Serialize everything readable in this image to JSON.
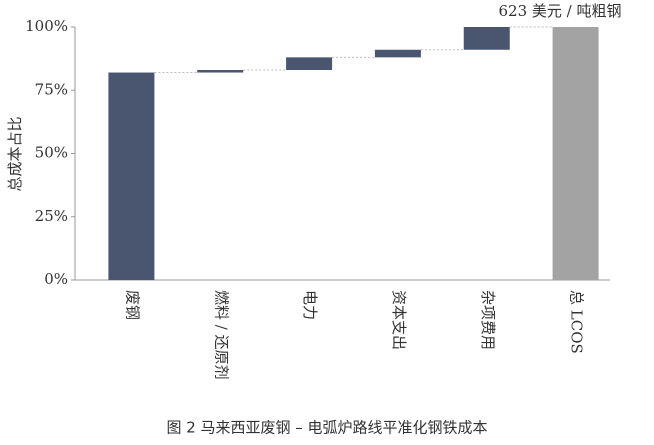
{
  "chart_data": {
    "type": "waterfall",
    "title": "图 2 马来西亚废钢 – 电弧炉路线平准化钢铁成本",
    "annotation": "623 美元 / 吨粗钢",
    "y_label": "总成本占比",
    "categories": [
      "废钢",
      "燃料 / 还原剂",
      "电力",
      "资本支出",
      "杂项费用",
      "总 LCOS"
    ],
    "values": [
      82,
      1,
      5,
      3,
      9,
      100
    ],
    "is_total": [
      false,
      false,
      false,
      false,
      false,
      true
    ],
    "colors": [
      "#4a5670",
      "#4a5670",
      "#4a5670",
      "#4a5670",
      "#4a5670",
      "#a3a3a3"
    ],
    "ylim": [
      0,
      100
    ],
    "yticks": [
      {
        "value": 0,
        "label": "0%"
      },
      {
        "value": 25,
        "label": "25%"
      },
      {
        "value": 50,
        "label": "50%"
      },
      {
        "value": 75,
        "label": "75%"
      },
      {
        "value": 100,
        "label": "100%"
      }
    ]
  }
}
